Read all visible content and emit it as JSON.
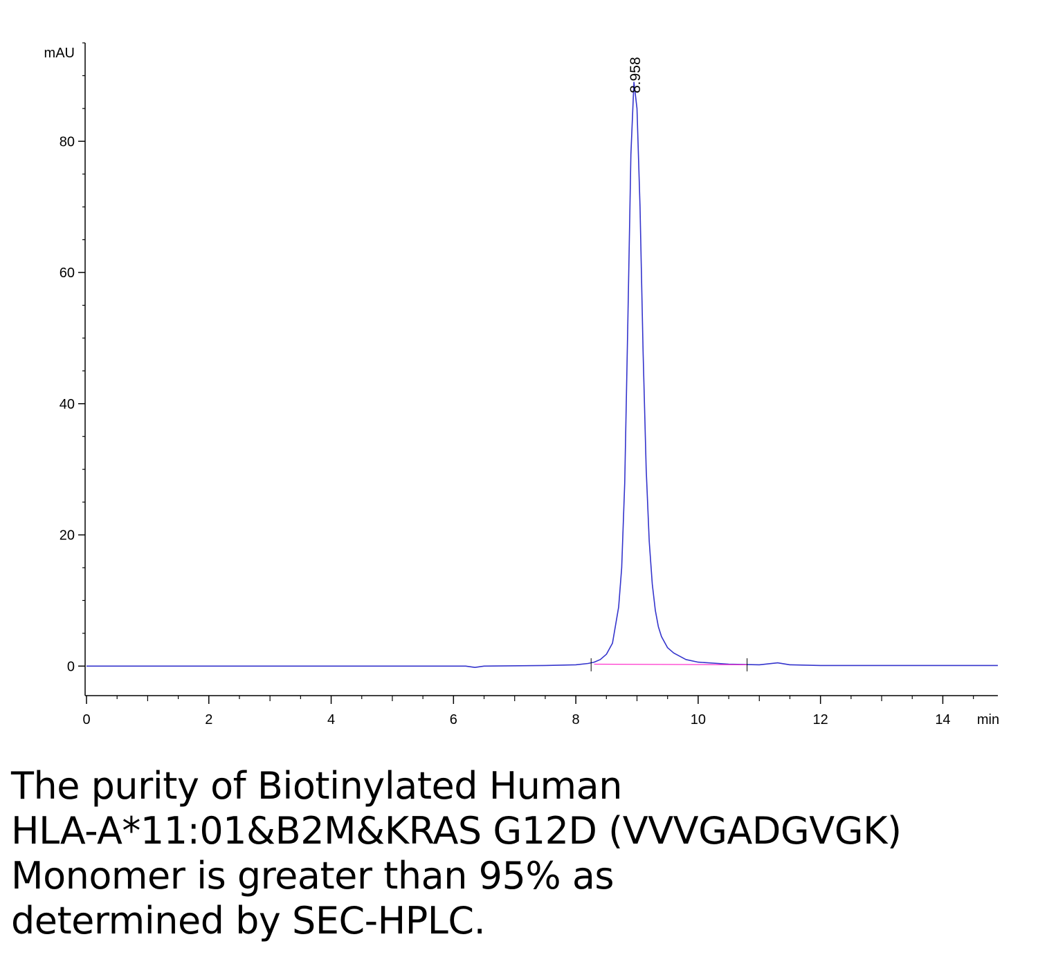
{
  "chart_data": {
    "type": "line",
    "title": "",
    "xlabel": "min",
    "ylabel": "mAU",
    "xlim": [
      0,
      14.9
    ],
    "ylim": [
      -4.5,
      95
    ],
    "x_ticks": [
      0,
      2,
      4,
      6,
      8,
      10,
      12,
      14
    ],
    "y_ticks": [
      0,
      20,
      40,
      60,
      80
    ],
    "grid": false,
    "series": [
      {
        "name": "",
        "color": "#3333cc",
        "x": [
          0,
          6.2,
          6.35,
          6.5,
          7.5,
          8.0,
          8.2,
          8.3,
          8.4,
          8.5,
          8.6,
          8.7,
          8.75,
          8.8,
          8.85,
          8.9,
          8.95,
          9.0,
          9.05,
          9.1,
          9.15,
          9.2,
          9.25,
          9.3,
          9.35,
          9.4,
          9.5,
          9.6,
          9.8,
          10.0,
          10.5,
          11.0,
          11.3,
          11.5,
          12.0,
          13.0,
          14.0,
          14.9
        ],
        "y": [
          0,
          0,
          -0.2,
          0,
          0.1,
          0.2,
          0.4,
          0.6,
          1.0,
          1.8,
          3.5,
          9,
          15,
          28,
          52,
          78,
          89,
          85,
          70,
          48,
          30,
          19,
          12.5,
          8.5,
          6.0,
          4.5,
          2.8,
          2.0,
          1.0,
          0.6,
          0.3,
          0.2,
          0.5,
          0.2,
          0.1,
          0.1,
          0.1,
          0.1
        ]
      },
      {
        "name": "",
        "color": "#ff33cc",
        "x": [
          8.3,
          10.8
        ],
        "y": [
          0.3,
          0.2
        ]
      }
    ],
    "annotations": [
      {
        "text": "8.958",
        "x": 8.958,
        "y": 89
      }
    ]
  },
  "caption": "The purity of Biotinylated Human\nHLA-A*11:01&B2M&KRAS G12D (VVVGADGVGK)\nMonomer is greater than 95% as\ndetermined by SEC-HPLC."
}
